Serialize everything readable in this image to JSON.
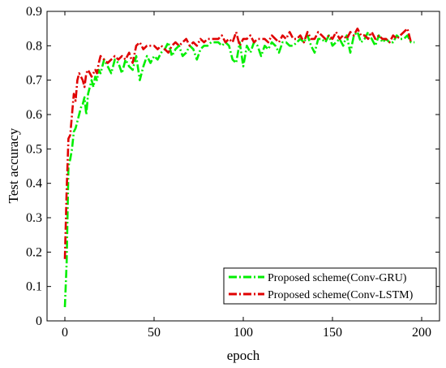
{
  "chart_data": {
    "type": "line",
    "xlabel": "epoch",
    "ylabel": "Test accuracy",
    "xlim": [
      -10,
      210
    ],
    "ylim": [
      0,
      0.9
    ],
    "xticks": [
      0,
      50,
      100,
      150,
      200
    ],
    "yticks": [
      0,
      0.1,
      0.2,
      0.3,
      0.4,
      0.5,
      0.6,
      0.7,
      0.8,
      0.9
    ],
    "xtick_labels": [
      "0",
      "50",
      "100",
      "150",
      "200"
    ],
    "ytick_labels": [
      "0",
      "0.1",
      "0.2",
      "0.3",
      "0.4",
      "0.5",
      "0.6",
      "0.7",
      "0.8",
      "0.9"
    ],
    "grid": false,
    "legend_position": "bottom-right",
    "series": [
      {
        "name": "Proposed scheme(Conv-GRU)",
        "color": "#00ee00",
        "line_style": "dash-dot",
        "x": [
          0,
          1,
          2,
          3,
          4,
          5,
          6,
          7,
          8,
          9,
          10,
          11,
          12,
          13,
          14,
          15,
          16,
          17,
          18,
          19,
          20,
          22,
          24,
          26,
          28,
          30,
          32,
          34,
          36,
          38,
          40,
          42,
          44,
          46,
          48,
          50,
          52,
          54,
          56,
          58,
          60,
          62,
          64,
          66,
          68,
          70,
          72,
          74,
          76,
          78,
          80,
          82,
          84,
          86,
          88,
          90,
          92,
          94,
          96,
          98,
          100,
          102,
          104,
          106,
          108,
          110,
          112,
          114,
          116,
          118,
          120,
          122,
          124,
          126,
          128,
          130,
          132,
          134,
          136,
          138,
          140,
          142,
          144,
          146,
          148,
          150,
          152,
          154,
          156,
          158,
          160,
          162,
          164,
          166,
          168,
          170,
          172,
          174,
          176,
          178,
          180,
          182,
          184,
          186,
          188,
          190,
          192,
          194,
          196
        ],
        "y": [
          0.04,
          0.17,
          0.45,
          0.47,
          0.5,
          0.55,
          0.56,
          0.58,
          0.6,
          0.62,
          0.63,
          0.65,
          0.6,
          0.66,
          0.68,
          0.7,
          0.68,
          0.71,
          0.7,
          0.73,
          0.72,
          0.76,
          0.74,
          0.72,
          0.76,
          0.75,
          0.72,
          0.76,
          0.74,
          0.73,
          0.77,
          0.7,
          0.74,
          0.77,
          0.75,
          0.77,
          0.76,
          0.78,
          0.79,
          0.81,
          0.77,
          0.79,
          0.8,
          0.77,
          0.78,
          0.8,
          0.79,
          0.76,
          0.79,
          0.8,
          0.8,
          0.81,
          0.81,
          0.81,
          0.8,
          0.81,
          0.8,
          0.76,
          0.75,
          0.81,
          0.74,
          0.8,
          0.78,
          0.81,
          0.8,
          0.77,
          0.8,
          0.79,
          0.81,
          0.8,
          0.78,
          0.81,
          0.81,
          0.8,
          0.8,
          0.81,
          0.82,
          0.81,
          0.83,
          0.8,
          0.78,
          0.82,
          0.82,
          0.81,
          0.83,
          0.8,
          0.81,
          0.82,
          0.8,
          0.83,
          0.78,
          0.83,
          0.84,
          0.81,
          0.82,
          0.84,
          0.82,
          0.8,
          0.83,
          0.81,
          0.82,
          0.81,
          0.81,
          0.83,
          0.82,
          0.82,
          0.83,
          0.81,
          0.81
        ]
      },
      {
        "name": "Proposed scheme(Conv-LSTM)",
        "color": "#e00000",
        "line_style": "dash-dot",
        "x": [
          0,
          1,
          2,
          3,
          4,
          5,
          6,
          7,
          8,
          9,
          10,
          11,
          12,
          13,
          14,
          15,
          16,
          17,
          18,
          19,
          20,
          22,
          24,
          26,
          28,
          30,
          32,
          34,
          36,
          38,
          40,
          42,
          44,
          46,
          48,
          50,
          52,
          54,
          56,
          58,
          60,
          62,
          64,
          66,
          68,
          70,
          72,
          74,
          76,
          78,
          80,
          82,
          84,
          86,
          88,
          90,
          92,
          94,
          96,
          98,
          100,
          102,
          104,
          106,
          108,
          110,
          112,
          114,
          116,
          118,
          120,
          122,
          124,
          126,
          128,
          130,
          132,
          134,
          136,
          138,
          140,
          142,
          144,
          146,
          148,
          150,
          152,
          154,
          156,
          158,
          160,
          162,
          164,
          166,
          168,
          170,
          172,
          174,
          176,
          178,
          180,
          182,
          184,
          186,
          188,
          190,
          192,
          194
        ],
        "y": [
          0.18,
          0.38,
          0.53,
          0.54,
          0.6,
          0.66,
          0.64,
          0.7,
          0.72,
          0.71,
          0.7,
          0.68,
          0.72,
          0.73,
          0.72,
          0.71,
          0.72,
          0.73,
          0.72,
          0.75,
          0.77,
          0.76,
          0.75,
          0.76,
          0.77,
          0.76,
          0.77,
          0.76,
          0.78,
          0.75,
          0.8,
          0.81,
          0.79,
          0.8,
          0.8,
          0.8,
          0.79,
          0.8,
          0.79,
          0.78,
          0.8,
          0.81,
          0.8,
          0.81,
          0.82,
          0.8,
          0.81,
          0.8,
          0.82,
          0.81,
          0.82,
          0.82,
          0.82,
          0.82,
          0.83,
          0.81,
          0.82,
          0.81,
          0.84,
          0.8,
          0.82,
          0.82,
          0.83,
          0.81,
          0.82,
          0.82,
          0.82,
          0.81,
          0.83,
          0.82,
          0.81,
          0.83,
          0.82,
          0.84,
          0.82,
          0.82,
          0.83,
          0.81,
          0.84,
          0.82,
          0.82,
          0.84,
          0.83,
          0.82,
          0.83,
          0.82,
          0.84,
          0.82,
          0.83,
          0.82,
          0.84,
          0.83,
          0.85,
          0.83,
          0.83,
          0.82,
          0.84,
          0.82,
          0.83,
          0.82,
          0.82,
          0.81,
          0.83,
          0.82,
          0.83,
          0.84,
          0.85,
          0.81
        ]
      }
    ]
  }
}
